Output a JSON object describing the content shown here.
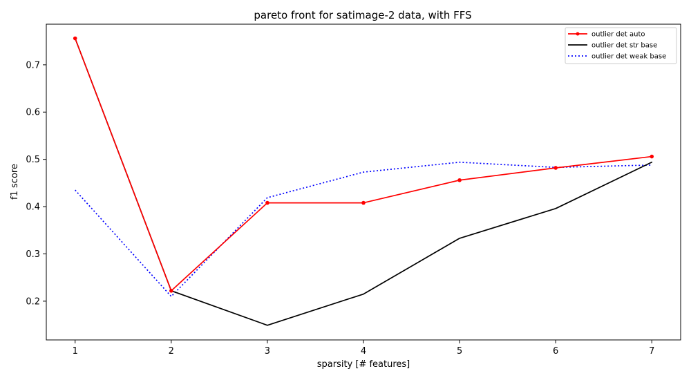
{
  "chart_data": {
    "type": "line",
    "title": "pareto front for satimage-2 data, with FFS",
    "xlabel": "sparsity [# features]",
    "ylabel": "f1 score",
    "x": [
      1,
      2,
      3,
      4,
      5,
      6,
      7
    ],
    "xticks": [
      "1",
      "2",
      "3",
      "4",
      "5",
      "6",
      "7"
    ],
    "yticks": [
      "0.2",
      "0.3",
      "0.4",
      "0.5",
      "0.6",
      "0.7"
    ],
    "xlim": [
      0.7,
      7.3
    ],
    "ylim": [
      0.118,
      0.786
    ],
    "grid": false,
    "legend_position": "top-right",
    "series": [
      {
        "name": "outlier det auto",
        "values": [
          0.756,
          0.222,
          0.408,
          0.408,
          0.456,
          0.482,
          0.506
        ],
        "color": "#ff0000",
        "style": "solid",
        "marker": "dot"
      },
      {
        "name": "outlier det str base",
        "values": [
          0.756,
          0.222,
          0.149,
          0.215,
          0.333,
          0.396,
          0.494
        ],
        "color": "#000000",
        "style": "solid",
        "marker": "none"
      },
      {
        "name": "outlier det weak base",
        "values": [
          0.435,
          0.21,
          0.419,
          0.473,
          0.494,
          0.483,
          0.488
        ],
        "color": "#0000ff",
        "style": "dotted",
        "marker": "none"
      }
    ]
  }
}
